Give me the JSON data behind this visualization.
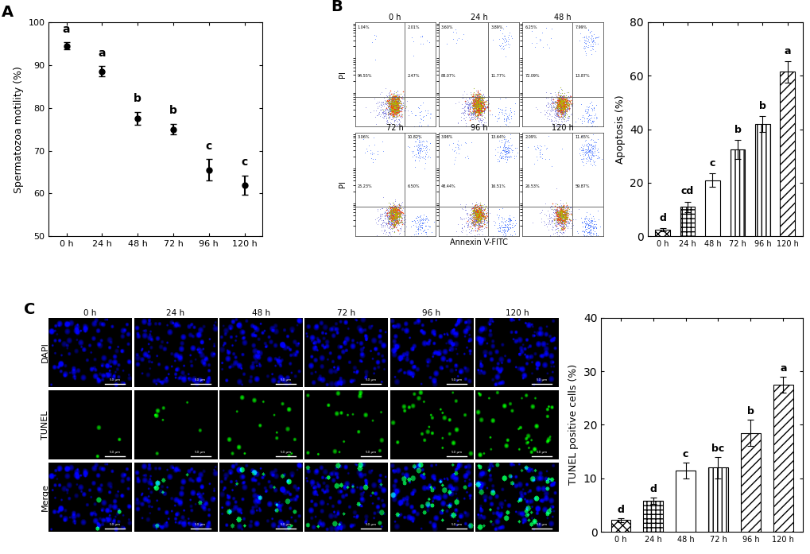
{
  "panel_A": {
    "x_labels": [
      "0 h",
      "24 h",
      "48 h",
      "72 h",
      "96 h",
      "120 h"
    ],
    "x_vals": [
      0,
      1,
      2,
      3,
      4,
      5
    ],
    "y_means": [
      94.5,
      88.5,
      77.5,
      75.0,
      65.5,
      62.0
    ],
    "y_errors": [
      0.8,
      1.2,
      1.5,
      1.2,
      2.5,
      2.2
    ],
    "letters": [
      "a",
      "a",
      "b",
      "b",
      "c",
      "c"
    ],
    "ylabel": "Spermatozoa motility (%)",
    "ylim": [
      50,
      100
    ],
    "yticks": [
      50,
      60,
      70,
      80,
      90,
      100
    ],
    "line_color": "#000000",
    "marker": "o",
    "markersize": 5,
    "linewidth": 1.5
  },
  "panel_B_bar": {
    "x_labels": [
      "0 h",
      "24 h",
      "48 h",
      "72 h",
      "96 h",
      "120 h"
    ],
    "y_means": [
      2.5,
      11.0,
      21.0,
      32.5,
      42.0,
      61.5
    ],
    "y_errors": [
      0.5,
      2.0,
      2.5,
      3.5,
      3.0,
      4.0
    ],
    "letters": [
      "d",
      "cd",
      "c",
      "b",
      "b",
      "a"
    ],
    "ylabel": "Apoptosis (%)",
    "ylim": [
      0,
      80
    ],
    "yticks": [
      0,
      20,
      40,
      60,
      80
    ],
    "hatch_patterns": [
      "xxx",
      "+++",
      "===",
      "|||",
      "|||",
      "///"
    ],
    "bar_color": "#ffffff",
    "bar_edge_color": "#000000",
    "bar_width": 0.6
  },
  "panel_C_bar": {
    "x_labels": [
      "0 h",
      "24 h",
      "48 h",
      "72 h",
      "96 h",
      "120 h"
    ],
    "y_means": [
      2.2,
      5.8,
      11.5,
      12.0,
      18.5,
      27.5
    ],
    "y_errors": [
      0.4,
      0.6,
      1.5,
      2.0,
      2.5,
      1.5
    ],
    "letters": [
      "d",
      "d",
      "c",
      "bc",
      "b",
      "a"
    ],
    "ylabel": "TUNEL positive cells (%)",
    "ylim": [
      0,
      40
    ],
    "yticks": [
      0,
      10,
      20,
      30,
      40
    ],
    "hatch_patterns": [
      "xxx",
      "+++",
      "===",
      "|||",
      "///",
      "///"
    ],
    "bar_color": "#ffffff",
    "bar_edge_color": "#000000",
    "bar_width": 0.6
  },
  "flow_titles": [
    "0 h",
    "24 h",
    "48 h",
    "72 h",
    "96 h",
    "120 h"
  ],
  "flow_annotations": [
    [
      "1.04%",
      "2.01%",
      "94.55%",
      "2.47%"
    ],
    [
      "3.60%",
      "3.89%",
      "88.07%",
      "11.77%"
    ],
    [
      "6.25%",
      "7.99%",
      "72.09%",
      "13.87%"
    ],
    [
      "3.06%",
      "10.82%",
      "25.23%",
      "6.50%"
    ],
    [
      "3.98%",
      "13.64%",
      "48.44%",
      "16.51%"
    ],
    [
      "2.09%",
      "11.65%",
      "26.53%",
      "59.87%"
    ]
  ],
  "micro_row_labels": [
    "DAPI",
    "TUNEL",
    "Merge"
  ],
  "micro_time_labels": [
    "0 h",
    "24 h",
    "48 h",
    "72 h",
    "96 h",
    "120 h"
  ],
  "tick_fontsize": 8,
  "letter_fontsize": 10,
  "axis_label_fontsize": 9,
  "panel_label_fontsize": 14,
  "bg_color": "#ffffff",
  "text_color": "#000000"
}
